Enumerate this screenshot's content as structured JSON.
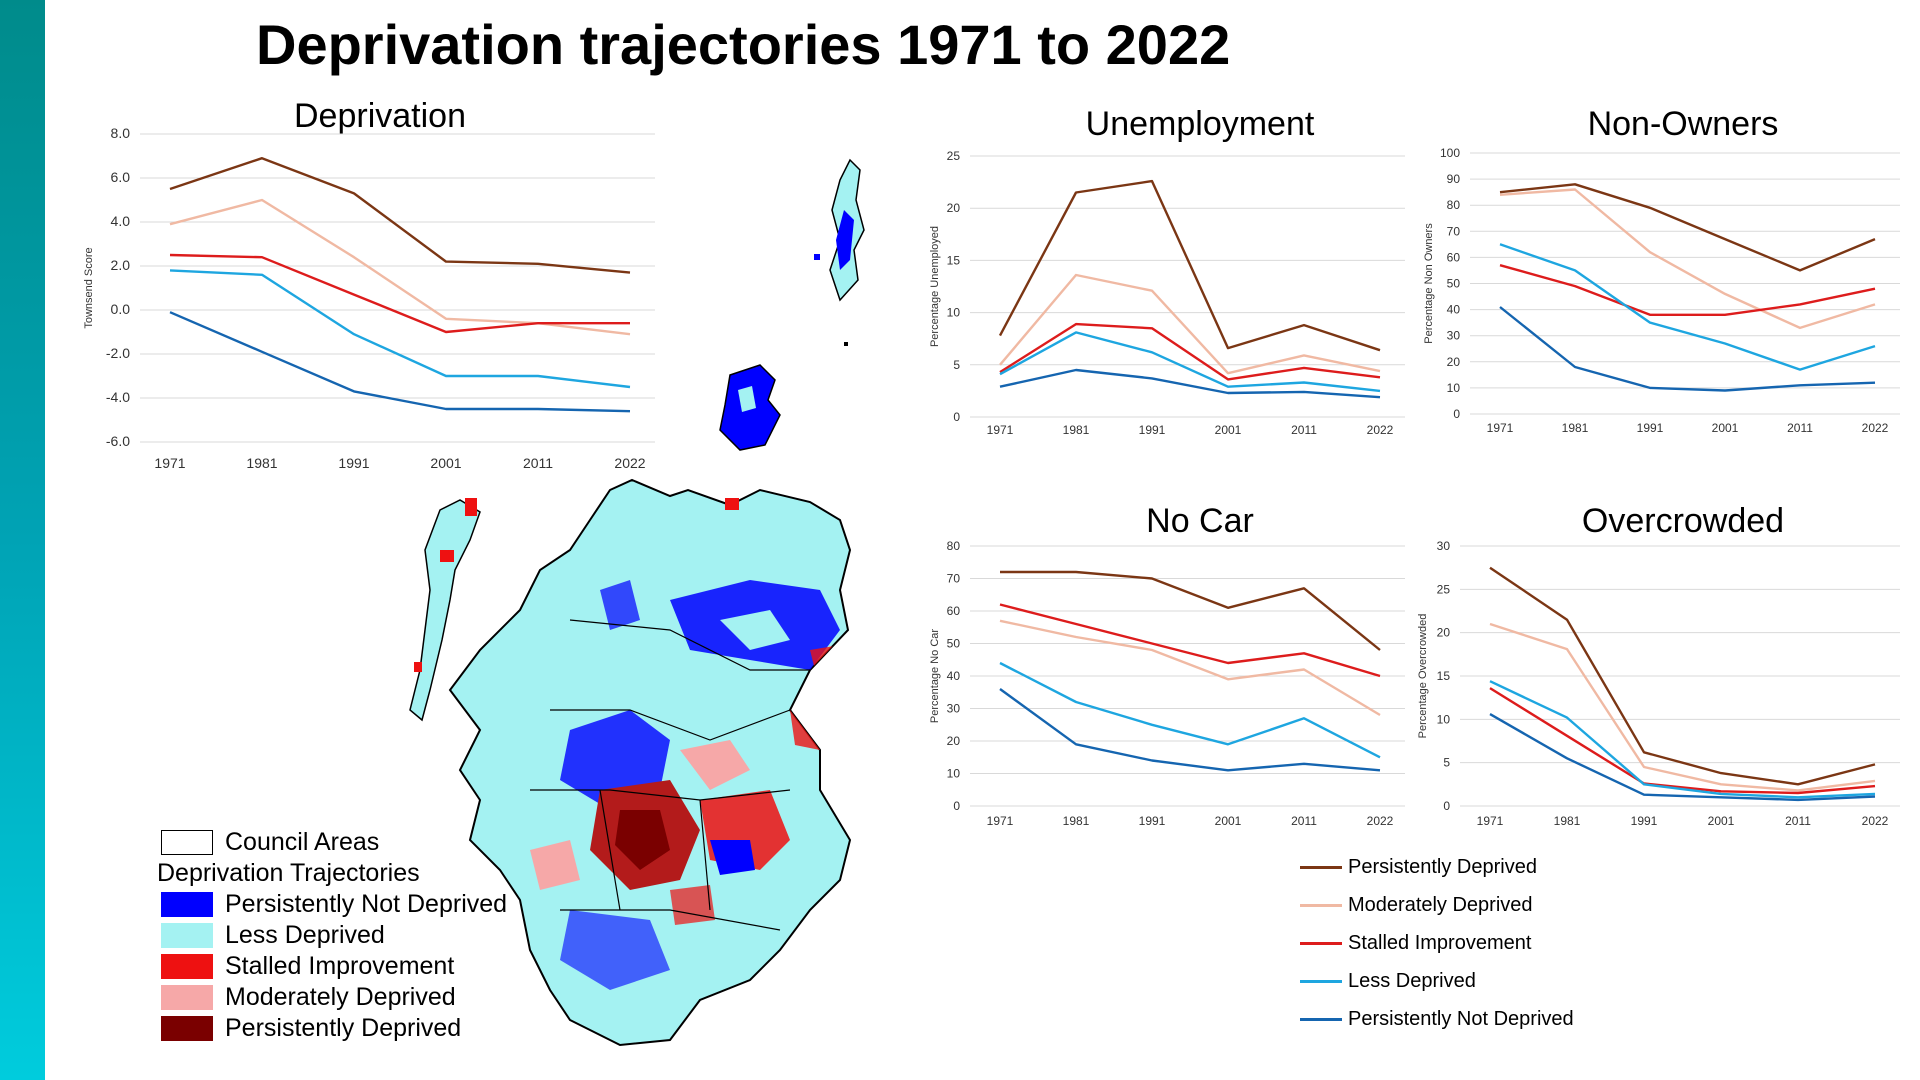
{
  "title": "Deprivation trajectories 1971 to 2022",
  "colors": {
    "sidebar": "#009aa6",
    "persistently_deprived": "#7b3614",
    "moderately_deprived": "#f0b9a3",
    "stalled_improvement": "#dd1c1c",
    "less_deprived": "#1ea6e0",
    "persistently_not_deprived": "#1565b0"
  },
  "map_legend": {
    "council_label": "Council Areas",
    "subtitle": "Deprivation Trajectories",
    "items": [
      {
        "label": "Persistently Not Deprived",
        "color": "#0000ff"
      },
      {
        "label": "Less Deprived",
        "color": "#a4f2f2"
      },
      {
        "label": "Stalled Improvement",
        "color": "#ee1111"
      },
      {
        "label": "Moderately Deprived",
        "color": "#f6a8a8"
      },
      {
        "label": "Persistently Deprived",
        "color": "#7a0000"
      }
    ]
  },
  "line_legend": [
    {
      "label": "Persistently Deprived",
      "color": "#7b3614"
    },
    {
      "label": "Moderately Deprived",
      "color": "#f0b9a3"
    },
    {
      "label": "Stalled Improvement",
      "color": "#dd1c1c"
    },
    {
      "label": "Less Deprived",
      "color": "#1ea6e0"
    },
    {
      "label": "Persistently Not Deprived",
      "color": "#1565b0"
    }
  ],
  "chart_data": [
    {
      "id": "deprivation",
      "type": "line",
      "title": "Deprivation",
      "ylabel": "Townsend Score",
      "categories": [
        "1971",
        "1981",
        "1991",
        "2001",
        "2011",
        "2022"
      ],
      "ylim": [
        -6,
        8
      ],
      "yticks": [
        "-6.0",
        "-4.0",
        "-2.0",
        "0.0",
        "2.0",
        "4.0",
        "6.0",
        "8.0"
      ],
      "ytick_values": [
        -6,
        -4,
        -2,
        0,
        2,
        4,
        6,
        8
      ],
      "grid": true,
      "series": [
        {
          "name": "Persistently Deprived",
          "color": "#7b3614",
          "values": [
            5.5,
            6.9,
            5.3,
            2.2,
            2.1,
            1.7
          ]
        },
        {
          "name": "Moderately Deprived",
          "color": "#f0b9a3",
          "values": [
            3.9,
            5.0,
            2.4,
            -0.4,
            -0.6,
            -1.1
          ]
        },
        {
          "name": "Stalled Improvement",
          "color": "#dd1c1c",
          "values": [
            2.5,
            2.4,
            0.7,
            -1.0,
            -0.6,
            -0.6
          ]
        },
        {
          "name": "Less Deprived",
          "color": "#1ea6e0",
          "values": [
            1.8,
            1.6,
            -1.1,
            -3.0,
            -3.0,
            -3.5
          ]
        },
        {
          "name": "Persistently Not Deprived",
          "color": "#1565b0",
          "values": [
            -0.1,
            -1.9,
            -3.7,
            -4.5,
            -4.5,
            -4.6
          ]
        }
      ]
    },
    {
      "id": "unemployment",
      "type": "line",
      "title": "Unemployment",
      "ylabel": "Percentage Unemployed",
      "categories": [
        "1971",
        "1981",
        "1991",
        "2001",
        "2011",
        "2022"
      ],
      "ylim": [
        0,
        25
      ],
      "yticks": [
        "0",
        "5",
        "10",
        "15",
        "20",
        "25"
      ],
      "ytick_values": [
        0,
        5,
        10,
        15,
        20,
        25
      ],
      "grid": true,
      "series": [
        {
          "name": "Persistently Deprived",
          "color": "#7b3614",
          "values": [
            7.8,
            21.5,
            22.6,
            6.6,
            8.8,
            6.4
          ]
        },
        {
          "name": "Moderately Deprived",
          "color": "#f0b9a3",
          "values": [
            5.0,
            13.6,
            12.1,
            4.2,
            5.9,
            4.4
          ]
        },
        {
          "name": "Stalled Improvement",
          "color": "#dd1c1c",
          "values": [
            4.3,
            8.9,
            8.5,
            3.6,
            4.7,
            3.8
          ]
        },
        {
          "name": "Less Deprived",
          "color": "#1ea6e0",
          "values": [
            4.1,
            8.1,
            6.2,
            2.9,
            3.3,
            2.5
          ]
        },
        {
          "name": "Persistently Not Deprived",
          "color": "#1565b0",
          "values": [
            2.9,
            4.5,
            3.7,
            2.3,
            2.4,
            1.9
          ]
        }
      ]
    },
    {
      "id": "non-owners",
      "type": "line",
      "title": "Non-Owners",
      "ylabel": "Percentage Non Owners",
      "categories": [
        "1971",
        "1981",
        "1991",
        "2001",
        "2011",
        "2022"
      ],
      "ylim": [
        0,
        100
      ],
      "yticks": [
        "0",
        "10",
        "20",
        "30",
        "40",
        "50",
        "60",
        "70",
        "80",
        "90",
        "100"
      ],
      "ytick_values": [
        0,
        10,
        20,
        30,
        40,
        50,
        60,
        70,
        80,
        90,
        100
      ],
      "grid": true,
      "series": [
        {
          "name": "Persistently Deprived",
          "color": "#7b3614",
          "values": [
            85,
            88,
            79,
            67,
            55,
            67
          ]
        },
        {
          "name": "Moderately Deprived",
          "color": "#f0b9a3",
          "values": [
            84,
            86,
            62,
            46,
            33,
            42
          ]
        },
        {
          "name": "Stalled Improvement",
          "color": "#dd1c1c",
          "values": [
            57,
            49,
            38,
            38,
            42,
            48
          ]
        },
        {
          "name": "Less Deprived",
          "color": "#1ea6e0",
          "values": [
            65,
            55,
            35,
            27,
            17,
            26
          ]
        },
        {
          "name": "Persistently Not Deprived",
          "color": "#1565b0",
          "values": [
            41,
            18,
            10,
            9,
            11,
            12
          ]
        }
      ]
    },
    {
      "id": "no-car",
      "type": "line",
      "title": "No Car",
      "ylabel": "Percentage No Car",
      "categories": [
        "1971",
        "1981",
        "1991",
        "2001",
        "2011",
        "2022"
      ],
      "ylim": [
        0,
        80
      ],
      "yticks": [
        "0",
        "10",
        "20",
        "30",
        "40",
        "50",
        "60",
        "70",
        "80"
      ],
      "ytick_values": [
        0,
        10,
        20,
        30,
        40,
        50,
        60,
        70,
        80
      ],
      "grid": true,
      "series": [
        {
          "name": "Persistently Deprived",
          "color": "#7b3614",
          "values": [
            72,
            72,
            70,
            61,
            67,
            48
          ]
        },
        {
          "name": "Moderately Deprived",
          "color": "#f0b9a3",
          "values": [
            57,
            52,
            48,
            39,
            42,
            28
          ]
        },
        {
          "name": "Stalled Improvement",
          "color": "#dd1c1c",
          "values": [
            62,
            56,
            50,
            44,
            47,
            40
          ]
        },
        {
          "name": "Less Deprived",
          "color": "#1ea6e0",
          "values": [
            44,
            32,
            25,
            19,
            27,
            15
          ]
        },
        {
          "name": "Persistently Not Deprived",
          "color": "#1565b0",
          "values": [
            36,
            19,
            14,
            11,
            13,
            11
          ]
        }
      ]
    },
    {
      "id": "overcrowded",
      "type": "line",
      "title": "Overcrowded",
      "ylabel": "Percentage Overcrowded",
      "categories": [
        "1971",
        "1981",
        "1991",
        "2001",
        "2011",
        "2022"
      ],
      "ylim": [
        0,
        30
      ],
      "yticks": [
        "0",
        "5",
        "10",
        "15",
        "20",
        "25",
        "30"
      ],
      "ytick_values": [
        0,
        5,
        10,
        15,
        20,
        25,
        30
      ],
      "grid": true,
      "series": [
        {
          "name": "Persistently Deprived",
          "color": "#7b3614",
          "values": [
            27.5,
            21.5,
            6.2,
            3.8,
            2.5,
            4.8
          ]
        },
        {
          "name": "Moderately Deprived",
          "color": "#f0b9a3",
          "values": [
            21.0,
            18.1,
            4.5,
            2.5,
            1.8,
            2.9
          ]
        },
        {
          "name": "Stalled Improvement",
          "color": "#dd1c1c",
          "values": [
            13.6,
            8.1,
            2.6,
            1.7,
            1.5,
            2.3
          ]
        },
        {
          "name": "Less Deprived",
          "color": "#1ea6e0",
          "values": [
            14.4,
            10.2,
            2.5,
            1.4,
            1.0,
            1.4
          ]
        },
        {
          "name": "Persistently Not Deprived",
          "color": "#1565b0",
          "values": [
            10.6,
            5.5,
            1.3,
            1.0,
            0.7,
            1.1
          ]
        }
      ]
    }
  ]
}
